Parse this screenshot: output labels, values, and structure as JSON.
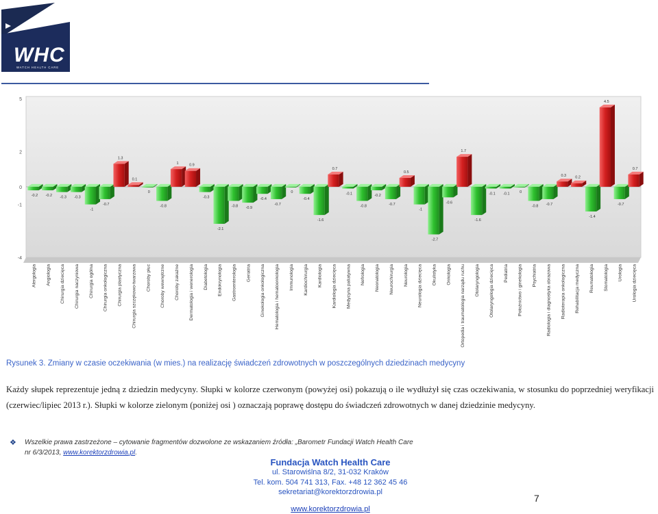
{
  "logo": {
    "text": "WHC",
    "subtext": "WATCH HEALTH CARE"
  },
  "chart_data": {
    "type": "bar",
    "ylim": [
      -4,
      5
    ],
    "yticks": [
      5,
      2,
      0,
      -1,
      -4
    ],
    "categories": [
      "Alergologia",
      "Angiologia",
      "Chirurgia dziecięca",
      "Chirurgia naczyniowa",
      "Chirurgia ogólna",
      "Chirurgia onkologiczna",
      "Chirurgia plastyczna",
      "Chirurgia szczękowo-twarzowa",
      "Choroby płuc",
      "Choroby wewnętrzne",
      "Choroby zakaźne",
      "Dermatologia i wenerologia",
      "Diabetologia",
      "Endokrynologia",
      "Gastroenterologia",
      "Geriatria",
      "Ginekologia onkologiczna",
      "Hematologia i hematoonkologia",
      "Immunologia",
      "Kardiochirurgia",
      "Kardiologia",
      "Kardiologia dziecięca",
      "Medycyna paliatywna",
      "Nefrologia",
      "Neonatologia",
      "Neurochirurgia",
      "Neurologia",
      "Neurologia dziecięca",
      "Okulistyka",
      "Onkologia",
      "Ortopedia i traumatologia narządu ruchu",
      "Otolaryngologia",
      "Otolaryngologia dziecięca",
      "Pediatria",
      "Położnictwo i ginekologia",
      "Psychiatria",
      "Radiologia i diagnostyka obrazowa",
      "Radioterapia onkologiczna",
      "Rehabilitacja medyczna",
      "Reumatologia",
      "Stomatologia",
      "Urologia",
      "Urologia dziecięca"
    ],
    "values": [
      -0.2,
      -0.2,
      -0.3,
      -0.3,
      -1,
      -0.7,
      1.3,
      0.1,
      0,
      -0.8,
      1,
      0.9,
      -0.3,
      -2.1,
      -0.8,
      -0.9,
      -0.4,
      -0.7,
      0,
      -0.4,
      -1.6,
      0.7,
      -0.1,
      -0.8,
      -0.2,
      -0.7,
      0.5,
      -1,
      -2.7,
      -0.6,
      1.7,
      -1.6,
      -0.1,
      -0.1,
      0,
      -0.8,
      -0.7,
      0.3,
      0.2,
      -1.4,
      4.5,
      -0.7,
      0.7
    ],
    "value_labels": [
      "-0.2",
      "-0.2",
      "-0.3",
      "-0.3",
      "-1",
      "-0.7",
      "1.3",
      "0.1",
      "0",
      "-0.8",
      "1",
      "0.9",
      "-0.3",
      "-2.1",
      "-0.8",
      "-0.9",
      "-0.4",
      "-0.7",
      "0",
      "-0.4",
      "-1.6",
      "0.7",
      "-0.1",
      "-0.8",
      "-0.2",
      "-0.7",
      "0.5",
      "-1",
      "-2.7",
      "-0.6",
      "1.7",
      "-1.6",
      "-0.1",
      "-0.1",
      "0",
      "-0.8",
      "-0.7",
      "0.3",
      "0.2",
      "-1.4",
      "4.5",
      "-0.7",
      "0.7"
    ],
    "colors": {
      "positive": "#d42020",
      "negative": "#2fc12f",
      "background": "#e4e4e4"
    },
    "grid": false,
    "legend": "none"
  },
  "caption": "Rysunek 3. Zmiany w czasie oczekiwania (w mies.) na realizację świadczeń zdrowotnych w poszczególnych dziedzinach medycyny",
  "paragraph": "Każdy słupek reprezentuje jedną z dziedzin medycyny. Słupki w kolorze czerwonym (powyżej osi) pokazują o ile wydłużył się czas oczekiwania, w stosunku do poprzedniej weryfikacji (czerwiec/lipiec 2013 r.). Słupki w kolorze zielonym (poniżej osi ) oznaczają poprawę dostępu do świadczeń zdrowotnych w danej dziedzinie medycyny.",
  "note": {
    "line1": "Wszelkie prawa zastrzeżone – cytowanie fragmentów dozwolone ze wskazaniem źródła: „Barometr Fundacji Watch Health Care",
    "line2_prefix": "nr 6/3/2013, ",
    "link": "www.korektorzdrowia.pl",
    "line2_suffix": "."
  },
  "footer": {
    "org": "Fundacja Watch Health Care",
    "address": "ul. Starowiślna 8/2, 31-032 Kraków",
    "phone": "Tel. kom. 504 741 313, Fax. +48 12 362 45 46",
    "email": "sekretariat@korektorzdrowia.pl",
    "website": "www.korektorzdrowia.pl"
  },
  "page_number": "7"
}
